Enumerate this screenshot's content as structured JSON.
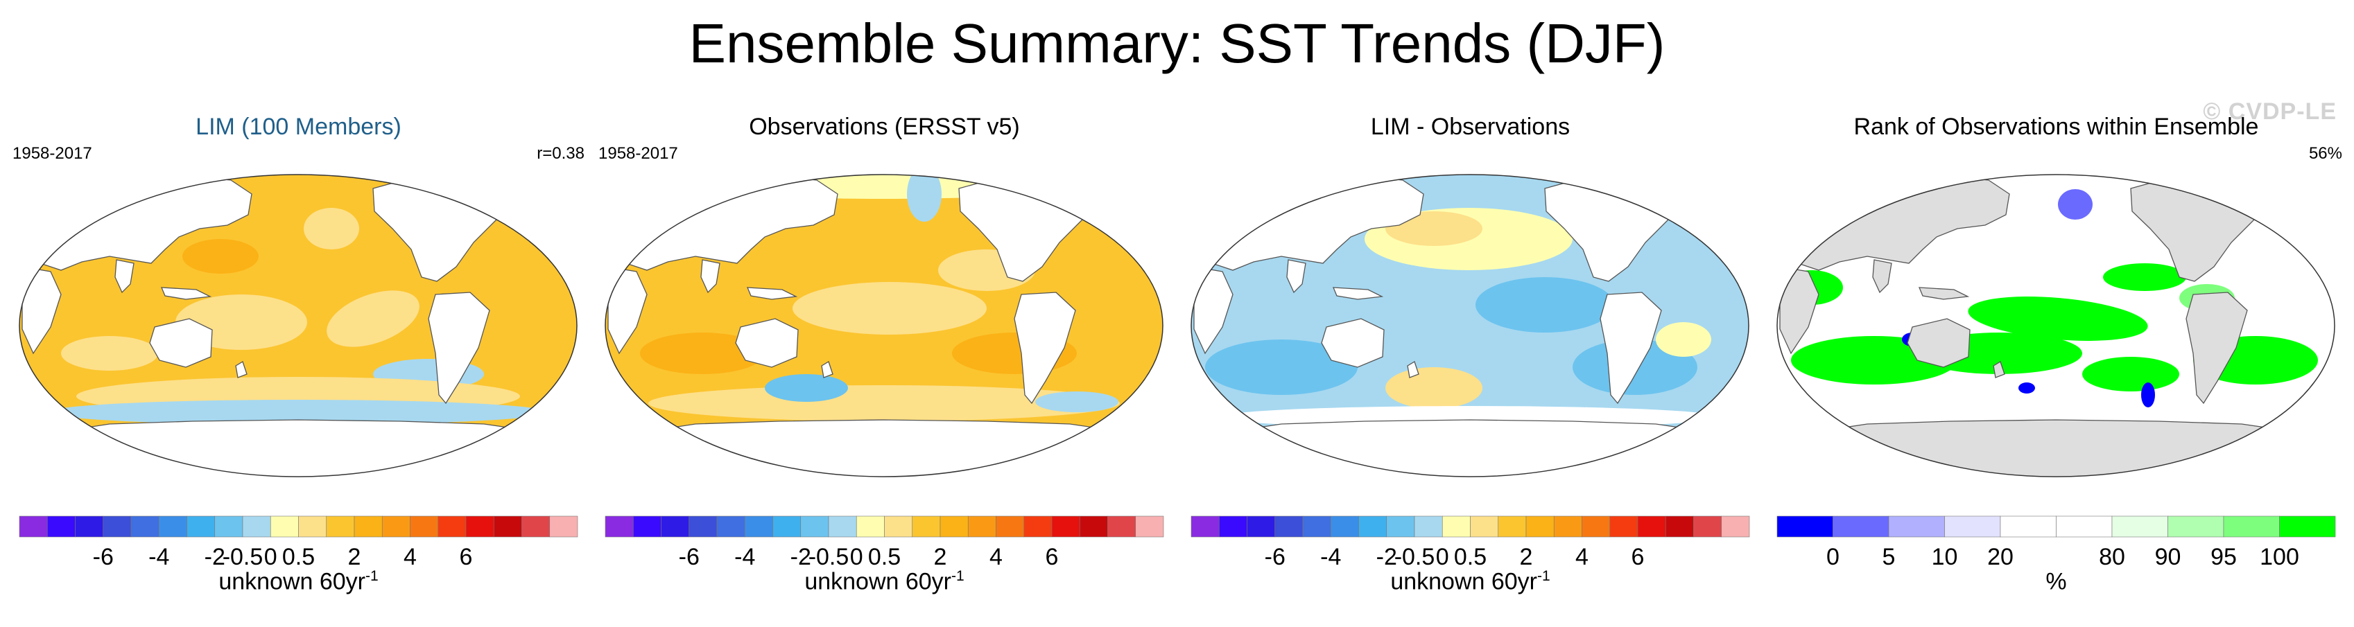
{
  "figure": {
    "title": "Ensemble Summary: SST Trends (DJF)",
    "watermark": "© CVDP-LE"
  },
  "panels": [
    {
      "title": "LIM (100 Members)",
      "left_text": "1958-2017",
      "right_text": "r=0.38",
      "map_type": "trend_warm",
      "colorbar": "trend",
      "units_base": "unknown 60yr",
      "units_exp": "-1"
    },
    {
      "title": "Observations (ERSST v5)",
      "left_text": "1958-2017",
      "right_text": "",
      "map_type": "trend_obs",
      "colorbar": "trend",
      "units_base": "unknown 60yr",
      "units_exp": "-1"
    },
    {
      "title": "LIM - Observations",
      "left_text": "",
      "right_text": "",
      "map_type": "diff",
      "colorbar": "trend",
      "units_base": "unknown 60yr",
      "units_exp": "-1"
    },
    {
      "title": "Rank of Observations within Ensemble",
      "left_text": "",
      "right_text": "56%",
      "map_type": "rank",
      "colorbar": "rank",
      "units_base": "%",
      "units_exp": ""
    }
  ],
  "colorbars": {
    "trend": {
      "colors": [
        "#8a2be2",
        "#3a0aff",
        "#2e1be6",
        "#3b4fd8",
        "#3f6fe0",
        "#3b8ee8",
        "#3fb0ee",
        "#6cc3ee",
        "#a7d8f0",
        "#fffeb0",
        "#fde08a",
        "#fbc530",
        "#fbb216",
        "#fa9a14",
        "#f77812",
        "#f43c10",
        "#e6110d",
        "#c8090b",
        "#e0454a",
        "#f8b0b0"
      ],
      "labels": [
        "-6",
        "-4",
        "-2",
        "-0.5",
        "0",
        "0.5",
        "2",
        "4",
        "6"
      ]
    },
    "rank": {
      "colors": [
        "#0000ff",
        "#6a6aff",
        "#b0b0ff",
        "#e2e2ff",
        "#ffffff",
        "#ffffff",
        "#e5ffe5",
        "#b0ffb0",
        "#7dff7d",
        "#00ff00"
      ],
      "labels": [
        "0",
        "5",
        "10",
        "20",
        "80",
        "90",
        "95",
        "100"
      ]
    }
  },
  "map_colors": {
    "land_trend": "#ffffff",
    "land_rank": "#dedede",
    "coast": "#555555",
    "ice_trend": "#ffffff"
  }
}
